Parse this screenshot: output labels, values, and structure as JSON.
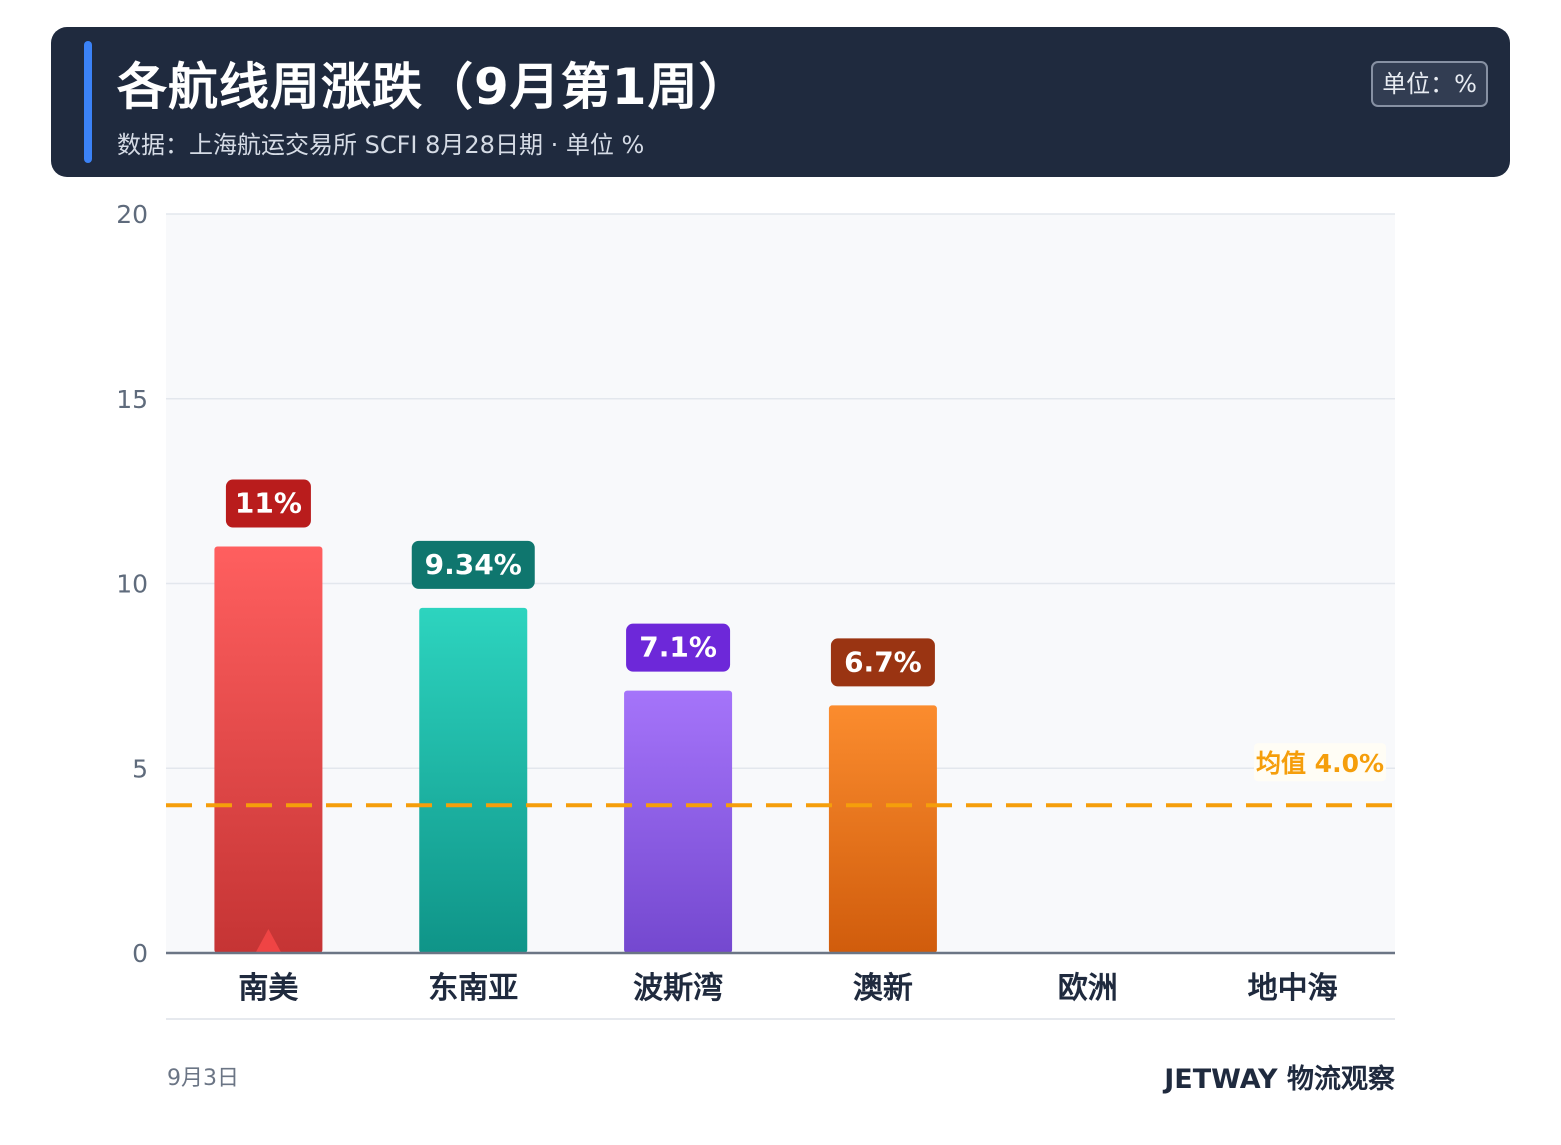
{
  "header": {
    "title": "各航线周涨跌（9月第1周）",
    "subtitle": "数据：上海航运交易所 SCFI 8月28日期 · 单位 %",
    "unit_badge": "单位：%"
  },
  "chart_data": {
    "type": "bar",
    "categories": [
      "南美",
      "东南亚",
      "波斯湾",
      "澳新",
      "欧洲",
      "地中海"
    ],
    "values": [
      11,
      9.34,
      7.1,
      6.7,
      0,
      0
    ],
    "value_labels": [
      "11%",
      "9.34%",
      "7.1%",
      "6.7%",
      "",
      ""
    ],
    "ylim": [
      0,
      20
    ],
    "yticks": [
      0,
      5,
      10,
      15,
      20
    ],
    "ytick_labels": [
      "0",
      "5",
      "10",
      "15",
      "20"
    ],
    "grid": true,
    "average": {
      "value": 4.0,
      "label": "均值 4.0%",
      "color": "#f59e0b"
    },
    "bar_colors": [
      {
        "top": "#ff5f5f",
        "bottom": "#c53434",
        "label_bg": "#b91c1c"
      },
      {
        "top": "#2dd4bf",
        "bottom": "#0f9488",
        "label_bg": "#0f766e"
      },
      {
        "top": "#a574fa",
        "bottom": "#7448cf",
        "label_bg": "#6d28d9"
      },
      {
        "top": "#fb8c2e",
        "bottom": "#d05c0c",
        "label_bg": "#9a3412"
      },
      {
        "top": "#94a3b8",
        "bottom": "#64748b",
        "label_bg": "#475569"
      },
      {
        "top": "#94a3b8",
        "bottom": "#64748b",
        "label_bg": "#475569"
      }
    ],
    "highlight_category": "南美",
    "highlight_color": "#ef4444"
  },
  "footer": {
    "date": "9月3日",
    "brand": "JETWAY 物流观察"
  }
}
